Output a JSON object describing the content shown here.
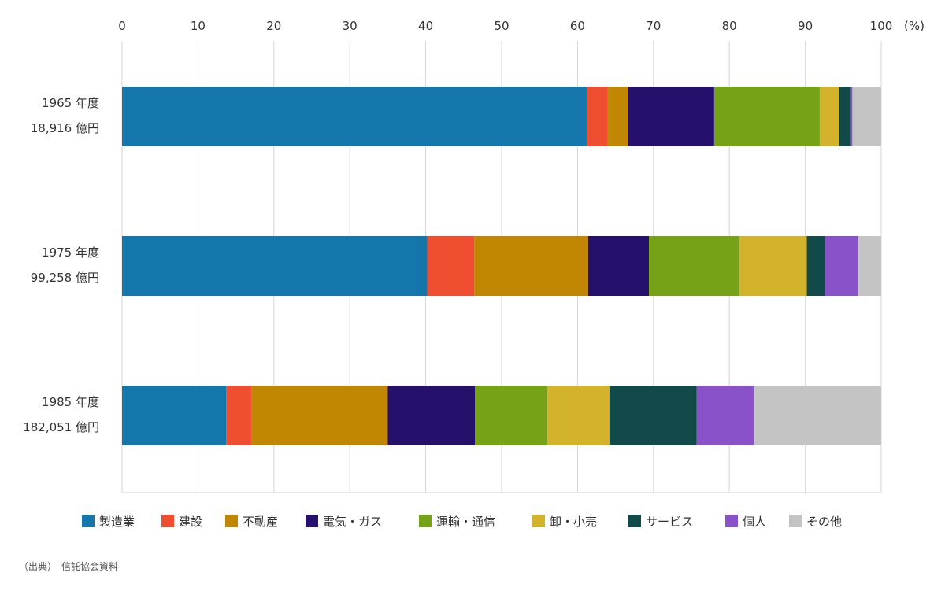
{
  "chart_data": {
    "type": "bar",
    "orientation": "horizontal",
    "stacked": true,
    "categories": [
      [
        "1965 年度",
        "18,916 億円"
      ],
      [
        "1975 年度",
        "99,258 億円"
      ],
      [
        "1985 年度",
        "182,051 億円"
      ]
    ],
    "series": [
      {
        "name": "製造業",
        "color": "#1476ab",
        "values": [
          61.2,
          40.2,
          13.7
        ]
      },
      {
        "name": "建設",
        "color": "#f04e30",
        "values": [
          2.7,
          6.2,
          3.4
        ]
      },
      {
        "name": "不動産",
        "color": "#c18603",
        "values": [
          2.7,
          15.0,
          17.9
        ]
      },
      {
        "name": "電気・ガス",
        "color": "#25106c",
        "values": [
          11.4,
          8.0,
          11.5
        ]
      },
      {
        "name": "運輸・通信",
        "color": "#76a217",
        "values": [
          13.9,
          11.9,
          9.5
        ]
      },
      {
        "name": "卸・小売",
        "color": "#d4b32c",
        "values": [
          2.5,
          8.9,
          8.2
        ]
      },
      {
        "name": "サービス",
        "color": "#124a49",
        "values": [
          1.6,
          2.4,
          11.5
        ]
      },
      {
        "name": "個人",
        "color": "#8a52c9",
        "values": [
          0.2,
          4.4,
          7.6
        ]
      },
      {
        "name": "その他",
        "color": "#c4c4c4",
        "values": [
          3.8,
          3.0,
          16.7
        ]
      }
    ],
    "xlim": [
      0,
      100
    ],
    "xticks": [
      0,
      10,
      20,
      30,
      40,
      50,
      60,
      70,
      80,
      90,
      100
    ],
    "x_unit": "(%)",
    "x_axis_position": "top",
    "grid": true,
    "legend_position": "bottom"
  },
  "source_note": "（出典）　信託協会資料"
}
